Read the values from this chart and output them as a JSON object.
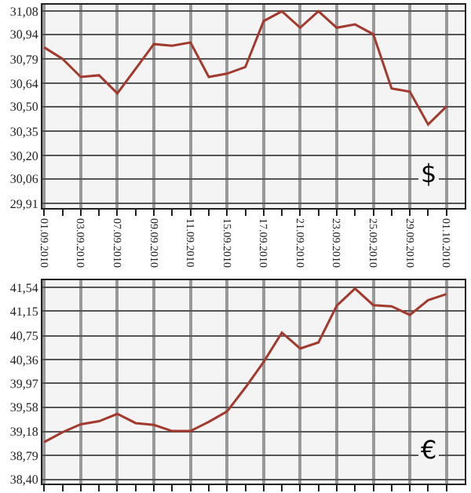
{
  "chart_data": [
    {
      "type": "line",
      "categories": [
        "01.09.2010",
        null,
        "03.09.2010",
        null,
        "07.09.2010",
        null,
        "09.09.2010",
        null,
        "11.09.2010",
        null,
        "15.09.2010",
        null,
        "17.09.2010",
        null,
        "21.09.2010",
        null,
        "23.09.2010",
        null,
        "25.09.2010",
        null,
        "29.09.2010",
        null,
        "01.10.2010"
      ],
      "series": [
        {
          "color": "#a33a2e",
          "values": [
            30.86,
            30.79,
            30.68,
            30.69,
            30.58,
            30.73,
            30.88,
            30.87,
            30.89,
            30.68,
            30.7,
            30.74,
            31.02,
            31.08,
            30.98,
            31.08,
            30.98,
            31.0,
            30.94,
            30.61,
            30.59,
            30.39,
            30.5
          ]
        }
      ],
      "ylim": [
        29.88,
        31.12
      ],
      "yticks": [
        {
          "value": 29.91,
          "label": "29,91"
        },
        {
          "value": 30.06,
          "label": "30,06"
        },
        {
          "value": 30.2,
          "label": "30,20"
        },
        {
          "value": 30.35,
          "label": "30,35"
        },
        {
          "value": 30.5,
          "label": "30,50"
        },
        {
          "value": 30.64,
          "label": "30,64"
        },
        {
          "value": 30.79,
          "label": "30,79"
        },
        {
          "value": 30.94,
          "label": "30,94"
        },
        {
          "value": 31.08,
          "label": "31,08"
        }
      ],
      "grid": true,
      "marker": "none",
      "line_style": "solid",
      "annotations": [
        "$"
      ]
    },
    {
      "type": "line",
      "categories": [
        "01.09.2010",
        null,
        "03.09.2010",
        null,
        "07.09.2010",
        null,
        "09.09.2010",
        null,
        "11.09.2010",
        null,
        "15.09.2010",
        null,
        "17.09.2010",
        null,
        "21.09.2010",
        null,
        "23.09.2010",
        null,
        "25.09.2010",
        null,
        "29.09.2010",
        null,
        "01.10.2010"
      ],
      "series": [
        {
          "color": "#a33a2e",
          "values": [
            39.01,
            39.17,
            39.3,
            39.35,
            39.47,
            39.32,
            39.29,
            39.19,
            39.19,
            39.34,
            39.51,
            39.9,
            40.32,
            40.8,
            40.54,
            40.64,
            41.24,
            41.52,
            41.25,
            41.23,
            41.09,
            41.33,
            41.43
          ]
        }
      ],
      "ylim": [
        38.33,
        41.66
      ],
      "yticks": [
        {
          "value": 38.4,
          "label": "38,40"
        },
        {
          "value": 38.79,
          "label": "38,79"
        },
        {
          "value": 39.18,
          "label": "39,18"
        },
        {
          "value": 39.58,
          "label": "39,58"
        },
        {
          "value": 39.97,
          "label": "39,97"
        },
        {
          "value": 40.36,
          "label": "40,36"
        },
        {
          "value": 40.75,
          "label": "40,75"
        },
        {
          "value": 41.15,
          "label": "41,15"
        },
        {
          "value": 41.54,
          "label": "41,54"
        }
      ],
      "grid": true,
      "marker": "none",
      "line_style": "solid",
      "tick_labels": "y",
      "annotations": [
        "€"
      ]
    }
  ]
}
